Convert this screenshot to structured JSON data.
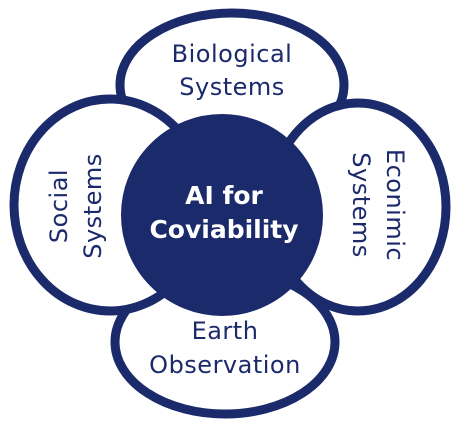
{
  "diagram": {
    "center": {
      "line1": "AI for",
      "line2": "Coviability"
    },
    "petals": {
      "top": {
        "line1": "Biological",
        "line2": "Systems"
      },
      "left": {
        "line1": "Social",
        "line2": "Systems"
      },
      "right": {
        "line1": "Econimic",
        "line2": "Systems"
      },
      "bottom": {
        "line1": "Earth",
        "line2": "Observation"
      }
    },
    "colors": {
      "primary": "#1b2a6b",
      "background": "#ffffff"
    }
  }
}
